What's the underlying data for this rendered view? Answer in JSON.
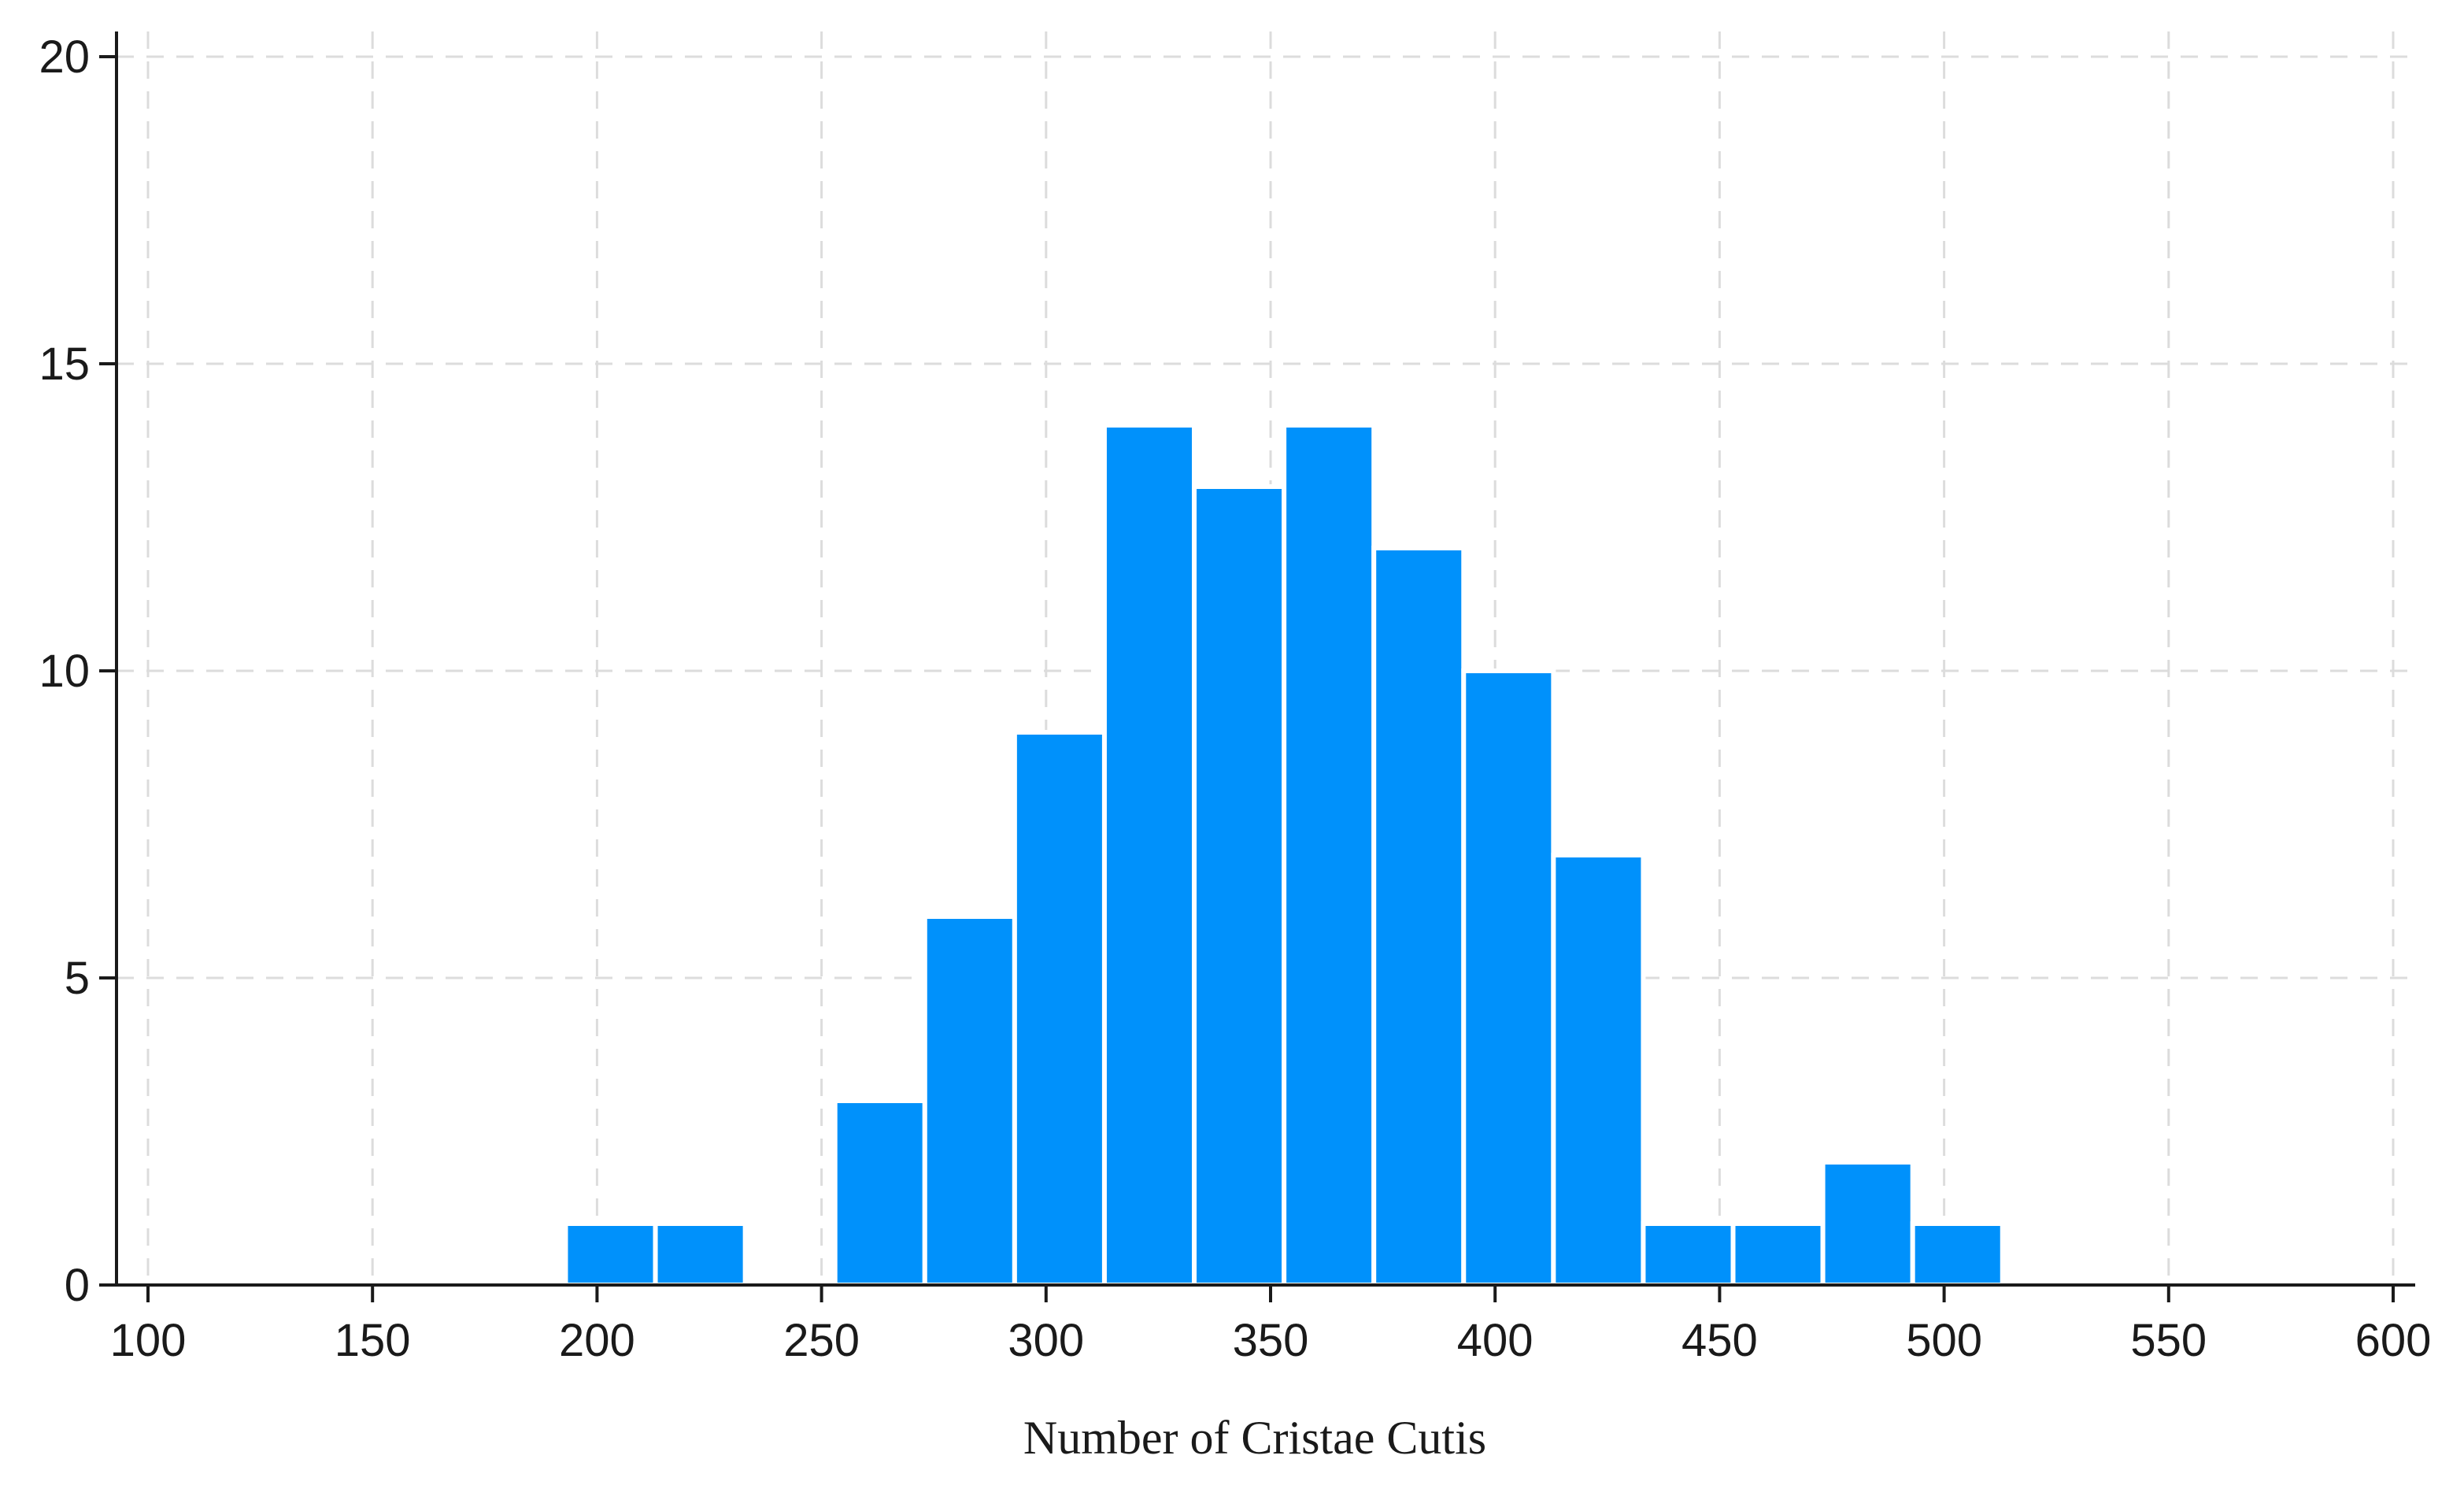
{
  "chart_data": {
    "type": "bar",
    "title": "",
    "xlabel": "Number of Cristae Cutis",
    "ylabel": "",
    "xlim": [
      100,
      600
    ],
    "ylim": [
      0,
      20
    ],
    "x_ticks": [
      100,
      150,
      200,
      250,
      300,
      350,
      400,
      450,
      500,
      550,
      600
    ],
    "y_ticks": [
      0,
      5,
      10,
      15,
      20
    ],
    "grid": true,
    "bar_color": "#0091fb",
    "series": [
      {
        "bins": [
          {
            "x0": 193,
            "x1": 213,
            "value": 1
          },
          {
            "x0": 213,
            "x1": 233,
            "value": 1
          },
          {
            "x0": 253,
            "x1": 273,
            "value": 3
          },
          {
            "x0": 273,
            "x1": 293,
            "value": 6
          },
          {
            "x0": 293,
            "x1": 313,
            "value": 9
          },
          {
            "x0": 313,
            "x1": 333,
            "value": 14
          },
          {
            "x0": 333,
            "x1": 353,
            "value": 13
          },
          {
            "x0": 353,
            "x1": 373,
            "value": 14
          },
          {
            "x0": 373,
            "x1": 393,
            "value": 12
          },
          {
            "x0": 393,
            "x1": 413,
            "value": 10
          },
          {
            "x0": 413,
            "x1": 433,
            "value": 7
          },
          {
            "x0": 433,
            "x1": 453,
            "value": 1
          },
          {
            "x0": 453,
            "x1": 473,
            "value": 1
          },
          {
            "x0": 473,
            "x1": 493,
            "value": 2
          },
          {
            "x0": 493,
            "x1": 513,
            "value": 1
          }
        ]
      }
    ]
  }
}
